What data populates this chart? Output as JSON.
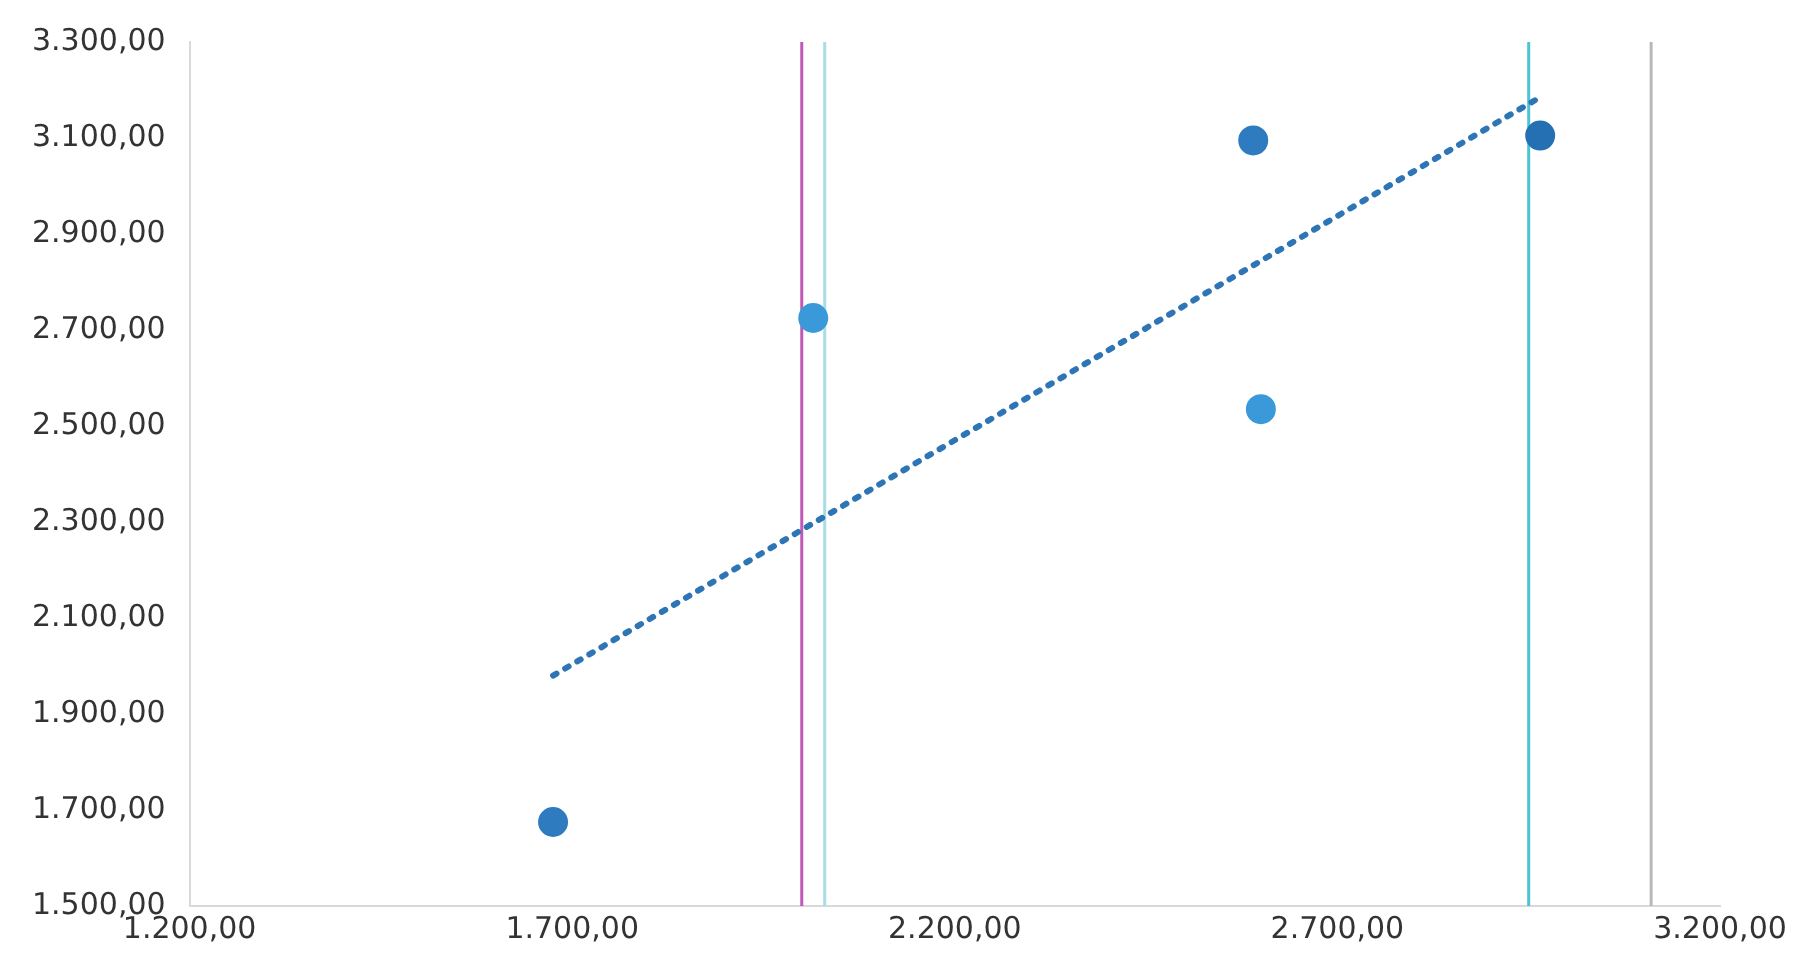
{
  "chart_data": {
    "type": "scatter",
    "xlim": [
      1200,
      3200
    ],
    "xticks": [
      {
        "value": 1200,
        "label": "1.200,00"
      },
      {
        "value": 1700,
        "label": "1.700,00"
      },
      {
        "value": 2200,
        "label": "2.200,00"
      },
      {
        "value": 2700,
        "label": "2.700,00"
      },
      {
        "value": 3200,
        "label": "3.200,00"
      }
    ],
    "ylim": [
      1500,
      3300
    ],
    "yticks": [
      {
        "value": 1500,
        "label": "1.500,00"
      },
      {
        "value": 1700,
        "label": "1.700,00"
      },
      {
        "value": 1900,
        "label": "1.900,00"
      },
      {
        "value": 2100,
        "label": "2.100,00"
      },
      {
        "value": 2300,
        "label": "2.300,00"
      },
      {
        "value": 2500,
        "label": "2.500,00"
      },
      {
        "value": 2700,
        "label": "2.700,00"
      },
      {
        "value": 2900,
        "label": "2.900,00"
      },
      {
        "value": 3100,
        "label": "3.100,00"
      },
      {
        "value": 3300,
        "label": "3.300,00"
      }
    ],
    "grid": false,
    "legend": false,
    "marker": "circle",
    "series": [
      {
        "type": "scatter",
        "x": [
          1675,
          2015,
          2590,
          2600,
          2965
        ],
        "values": [
          1675,
          2725,
          3095,
          2535,
          3105
        ],
        "colors": [
          "#2e7bbf",
          "#3a9ad9",
          "#2e7bbf",
          "#3a9ad9",
          "#2470b3"
        ]
      },
      {
        "type": "line",
        "x": [
          1675,
          2965
        ],
        "values": [
          1980,
          3185
        ],
        "color": "#2e75b6",
        "line_style": "dotted",
        "marker": "none"
      }
    ],
    "ref_lines": [
      {
        "axis": "x",
        "value": 2000,
        "color": "#c058b8"
      },
      {
        "axis": "x",
        "value": 2030,
        "color": "#a8dce6"
      },
      {
        "axis": "x",
        "value": 2950,
        "color": "#4cc4d6"
      },
      {
        "axis": "x",
        "value": 3110,
        "color": "#b8b8b8"
      }
    ]
  }
}
